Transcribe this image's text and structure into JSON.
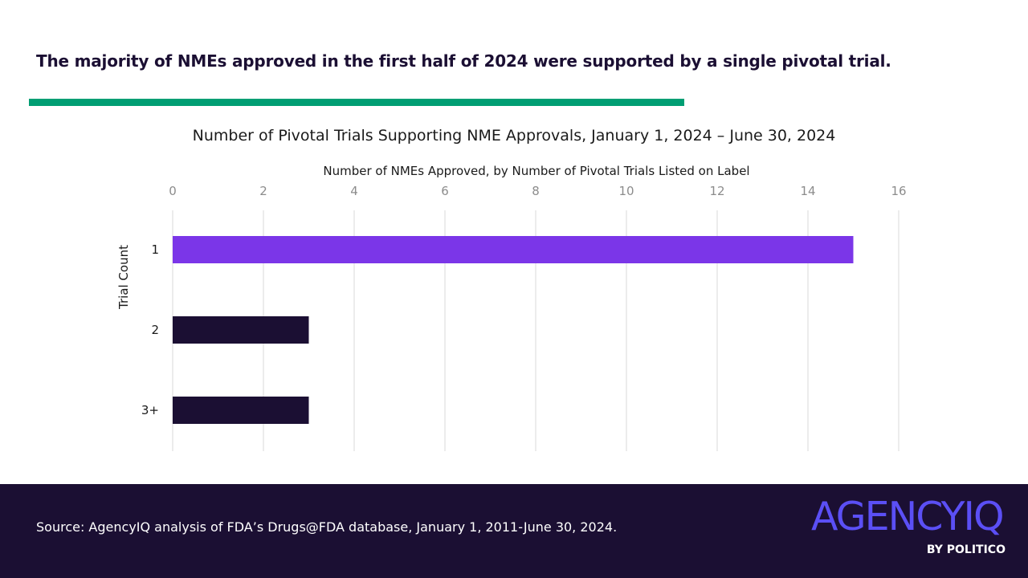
{
  "headline": "The majority of NMEs approved in the first half of 2024 were supported by a single pivotal trial.",
  "colors": {
    "accent_rule": "#009e73",
    "footer_bg": "#1b0f33",
    "bar_highlight": "#7b36e8",
    "bar_default": "#1b0f33",
    "logo": "#5b4ff5"
  },
  "chart_data": {
    "type": "bar",
    "orientation": "horizontal",
    "title": "Number of Pivotal Trials Supporting NME Approvals, January 1, 2024 – June 30, 2024",
    "xlabel": "Number of NMEs Approved, by Number of Pivotal Trials Listed on Label",
    "ylabel": "Trial Count",
    "categories": [
      "1",
      "2",
      "3+"
    ],
    "values": [
      15,
      3,
      3
    ],
    "xlim": [
      0,
      16
    ],
    "xticks": [
      "0",
      "2",
      "4",
      "6",
      "8",
      "10",
      "12",
      "14",
      "16"
    ],
    "grid": true,
    "x_axis_position": "top"
  },
  "footer": {
    "source": "Source: AgencyIQ analysis of FDA’s Drugs@FDA database, January 1, 2011-June 30, 2024.",
    "logo_text": "AGENCYIQ",
    "logo_sub": "BY POLITICO"
  }
}
